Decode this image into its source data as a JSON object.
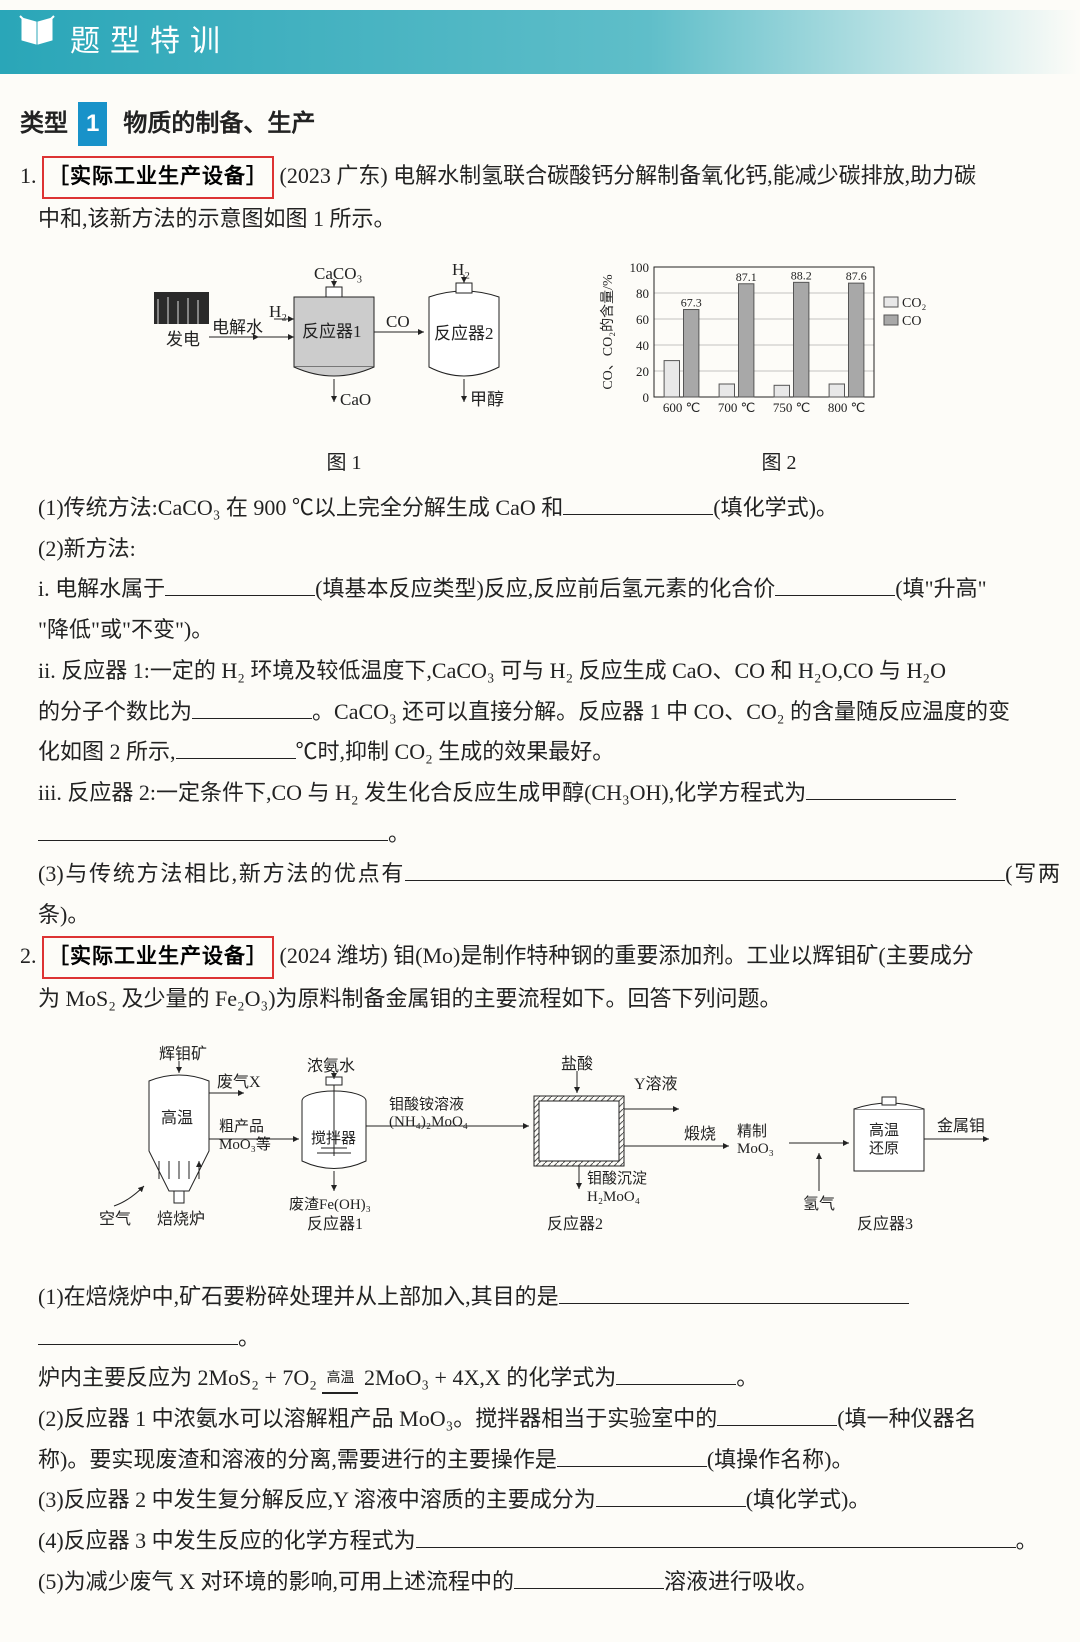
{
  "header": "题型特训",
  "type": {
    "prefix": "类型",
    "num": "1",
    "title": "物质的制备、生产"
  },
  "q1": {
    "num": "1.",
    "tag": "［实际工业生产设备］",
    "src": "(2023 广东)",
    "intro1": "电解水制氢联合碳酸钙分解制备氧化钙,能减少碳排放,助力碳",
    "intro2": "中和,该新方法的示意图如图 1 所示。",
    "fig1": {
      "el": "发电",
      "el2": "电解水",
      "r1": "反应器1",
      "r2": "反应器2",
      "caco3": "CaCO₃",
      "co": "CO",
      "cao": "CaO",
      "h2": "H₂",
      "ch3oh": "甲醇",
      "cap": "图 1"
    },
    "chart": {
      "type": "grouped-bar",
      "cap": "图 2",
      "ylabel": "CO、CO₂的含量/%",
      "ylim": [
        0,
        100
      ],
      "yticks": [
        0,
        20,
        40,
        60,
        80,
        100
      ],
      "cats": [
        "600 ℃",
        "700 ℃",
        "750 ℃",
        "800 ℃"
      ],
      "labels": [
        67.3,
        87.1,
        88.2,
        87.6
      ],
      "co_vals": [
        67.3,
        87.1,
        88.2,
        87.6
      ],
      "co2_vals": [
        28,
        10,
        9,
        10
      ],
      "co_color": "#a8a8a8",
      "co2_color": "#e8e8e8",
      "grid": "#888",
      "legend": [
        "CO₂",
        "CO"
      ]
    },
    "p1a": "(1)传统方法:CaCO₃ 在 900 ℃以上完全分解生成 CaO 和",
    "p1b": "(填化学式)。",
    "p2": "(2)新方法:",
    "p2i_a": "i. 电解水属于",
    "p2i_b": "(填基本反应类型)反应,反应前后氢元素的化合价",
    "p2i_c": "(填\"升高\"",
    "p2i_d": "\"降低\"或\"不变\")。",
    "p2ii_a": "ii. 反应器 1:一定的 H₂ 环境及较低温度下,CaCO₃ 可与 H₂ 反应生成 CaO、CO 和 H₂O,CO 与 H₂O",
    "p2ii_b": "的分子个数比为",
    "p2ii_c": "。CaCO₃ 还可以直接分解。反应器 1 中 CO、CO₂ 的含量随反应温度的变",
    "p2ii_d": "化如图 2 所示,",
    "p2ii_e": "℃时,抑制 CO₂ 生成的效果最好。",
    "p2iii_a": "iii. 反应器 2:一定条件下,CO 与 H₂ 发生化合反应生成甲醇(CH₃OH),化学方程式为",
    "p2iii_b": "。",
    "p3a": "(3)与传统方法相比,新方法的优点有",
    "p3b": "(写两条)。"
  },
  "q2": {
    "num": "2.",
    "tag": "［实际工业生产设备］",
    "src": "(2024 潍坊)",
    "intro1": "钼(Mo)是制作特种钢的重要添加剂。工业以辉钼矿(主要成分",
    "intro2": "为 MoS₂ 及少量的 Fe₂O₃)为原料制备金属钼的主要流程如下。回答下列问题。",
    "diag": {
      "ore": "辉钼矿",
      "gasX": "废气X",
      "air": "空气",
      "furnace": "焙烧炉",
      "hitemp": "高温",
      "crude": "粗产品\nMoO₃等",
      "ammonia": "浓氨水",
      "mix": "搅拌器",
      "r1": "反应器1",
      "waste": "废渣Fe(OH)₃",
      "sol": "钼酸铵溶液\n(NH₄)₂MoO₄",
      "hcl": "盐酸",
      "ysol": "Y溶液",
      "r2": "反应器2",
      "prec": "钼酸沉淀\nH₂MoO₄",
      "calc": "煅烧",
      "moo3": "精制\nMoO₃",
      "h2": "氢气",
      "r3": "反应器3",
      "red": "高温\n还原",
      "mo": "金属钼"
    },
    "p1a": "(1)在焙烧炉中,矿石要粉碎处理并从上部加入,其目的是",
    "p1b": "。",
    "eq_a": "炉内主要反应为 2MoS₂ + 7O₂ ",
    "eq_cond": "高温",
    "eq_b": " 2MoO₃ + 4X,X 的化学式为",
    "eq_c": "。",
    "p2a": "(2)反应器 1 中浓氨水可以溶解粗产品 MoO₃。搅拌器相当于实验室中的",
    "p2b": "(填一种仪器名",
    "p2c": "称)。要实现废渣和溶液的分离,需要进行的主要操作是",
    "p2d": "(填操作名称)。",
    "p3a": "(3)反应器 2 中发生复分解反应,Y 溶液中溶质的主要成分为",
    "p3b": "(填化学式)。",
    "p4a": "(4)反应器 3 中发生反应的化学方程式为",
    "p4b": "。",
    "p5a": "(5)为减少废气 X 对环境的影响,可用上述流程中的",
    "p5b": "溶液进行吸收。"
  }
}
